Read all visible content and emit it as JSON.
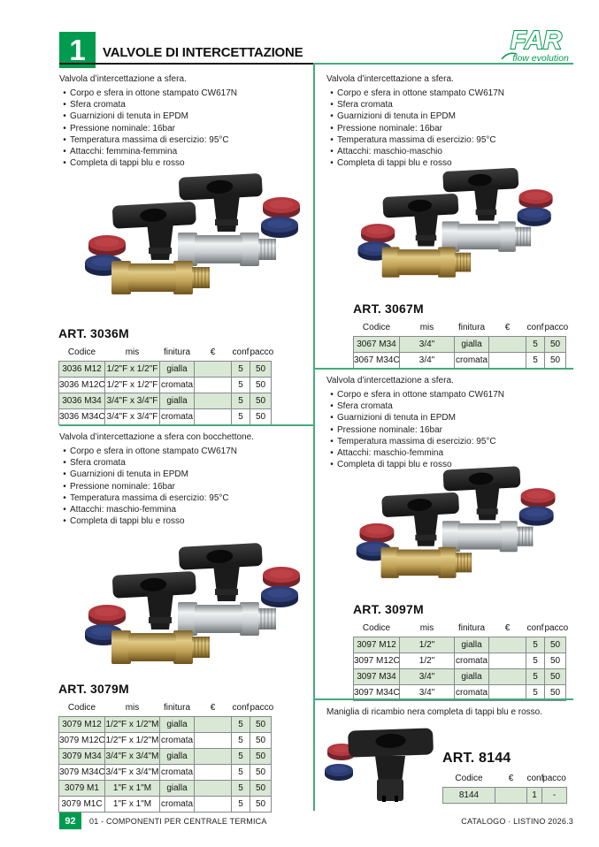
{
  "colors": {
    "accent_green": "#009b4e",
    "divider_green": "#45ab7c",
    "table_row_green": "#d9e8d4",
    "cap_red": "#b2383e",
    "cap_blue": "#2d3d76"
  },
  "header": {
    "chapter_number": "1",
    "chapter_title": "VALVOLE DI INTERCETTAZIONE",
    "brand": {
      "name": "FAR",
      "tagline": "flow evolution"
    }
  },
  "sections": {
    "s3036": {
      "intro": "Valvola d’intercettazione a sfera.",
      "features": [
        "Corpo e sfera in ottone stampato CW617N",
        "Sfera cromata",
        "Guarnizioni di tenuta in EPDM",
        "Pressione nominale: 16bar",
        "Temperatura massima di esercizio: 95°C",
        "Attacchi: femmina-femmina",
        "Completa di tappi blu e rosso"
      ],
      "art": "ART. 3036M",
      "table": {
        "headers": [
          "Codice",
          "mis",
          "finitura",
          "€",
          "conf",
          "pacco"
        ],
        "rows": [
          [
            "3036 M12",
            "1/2\"F x 1/2\"F",
            "gialla",
            "",
            "5",
            "50"
          ],
          [
            "3036 M12C",
            "1/2\"F x 1/2\"F",
            "cromata",
            "",
            "5",
            "50"
          ],
          [
            "3036 M34",
            "3/4\"F x 3/4\"F",
            "gialla",
            "",
            "5",
            "50"
          ],
          [
            "3036 M34C",
            "3/4\"F x 3/4\"F",
            "cromata",
            "",
            "5",
            "50"
          ]
        ]
      }
    },
    "s3079": {
      "intro": "Valvola d’intercettazione a sfera con bocchettone.",
      "features": [
        "Corpo e sfera in ottone stampato CW617N",
        "Sfera cromata",
        "Guarnizioni di tenuta in EPDM",
        "Pressione nominale: 16bar",
        "Temperatura massima di esercizio: 95°C",
        "Attacchi: maschio-femmina",
        "Completa di tappi blu e rosso"
      ],
      "art": "ART. 3079M",
      "table": {
        "headers": [
          "Codice",
          "mis",
          "finitura",
          "€",
          "conf",
          "pacco"
        ],
        "rows": [
          [
            "3079 M12",
            "1/2\"F x 1/2\"M",
            "gialla",
            "",
            "5",
            "50"
          ],
          [
            "3079 M12C",
            "1/2\"F x 1/2\"M",
            "cromata",
            "",
            "5",
            "50"
          ],
          [
            "3079 M34",
            "3/4\"F x 3/4\"M",
            "gialla",
            "",
            "5",
            "50"
          ],
          [
            "3079 M34C",
            "3/4\"F x 3/4\"M",
            "cromata",
            "",
            "5",
            "50"
          ],
          [
            "3079 M1",
            "1\"F x 1\"M",
            "gialla",
            "",
            "5",
            "50"
          ],
          [
            "3079 M1C",
            "1\"F x 1\"M",
            "cromata",
            "",
            "5",
            "50"
          ]
        ]
      }
    },
    "s3067": {
      "intro": "Valvola d’intercettazione a sfera.",
      "features": [
        "Corpo e sfera in ottone stampato CW617N",
        "Sfera cromata",
        "Guarnizioni di tenuta in EPDM",
        "Pressione nominale: 16bar",
        "Temperatura massima di esercizio: 95°C",
        "Attacchi: maschio-maschio",
        "Completa di tappi blu e rosso"
      ],
      "art": "ART. 3067M",
      "table": {
        "headers": [
          "Codice",
          "mis",
          "finitura",
          "€",
          "conf",
          "pacco"
        ],
        "rows": [
          [
            "3067 M34",
            "3/4\"",
            "gialla",
            "",
            "5",
            "50"
          ],
          [
            "3067 M34C",
            "3/4\"",
            "cromata",
            "",
            "5",
            "50"
          ]
        ]
      }
    },
    "s3097": {
      "intro": "Valvola d’intercettazione a sfera.",
      "features": [
        "Corpo e sfera in ottone stampato CW617N",
        "Sfera cromata",
        "Guarnizioni di tenuta in EPDM",
        "Pressione nominale: 16bar",
        "Temperatura massima di esercizio: 95°C",
        "Attacchi: maschio-femmina",
        "Completa di tappi blu e rosso"
      ],
      "art": "ART. 3097M",
      "table": {
        "headers": [
          "Codice",
          "mis",
          "finitura",
          "€",
          "conf",
          "pacco"
        ],
        "rows": [
          [
            "3097 M12",
            "1/2\"",
            "gialla",
            "",
            "5",
            "50"
          ],
          [
            "3097 M12C",
            "1/2\"",
            "cromata",
            "",
            "5",
            "50"
          ],
          [
            "3097 M34",
            "3/4\"",
            "gialla",
            "",
            "5",
            "50"
          ],
          [
            "3097 M34C",
            "3/4\"",
            "cromata",
            "",
            "5",
            "50"
          ]
        ]
      }
    },
    "s8144": {
      "intro": "Maniglia di ricambio nera completa di tappi blu e rosso.",
      "art": "ART. 8144",
      "table": {
        "headers": [
          "Codice",
          "€",
          "conf",
          "pacco"
        ],
        "rows": [
          [
            "8144",
            "",
            "1",
            "-"
          ]
        ]
      }
    }
  },
  "footer": {
    "page_number": "92",
    "section_label": "01 - COMPONENTI PER CENTRALE TERMICA",
    "catalog_label": "CATALOGO · LISTINO 2026.3"
  }
}
